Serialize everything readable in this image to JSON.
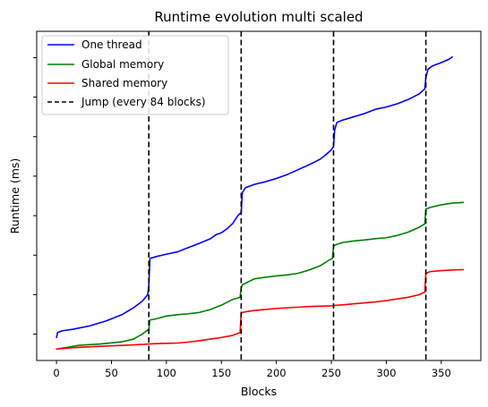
{
  "chart_data": {
    "type": "line",
    "title": "Runtime evolution multi scaled",
    "xlabel": "Blocks",
    "ylabel": "Runtime (ms)",
    "xlim": [
      -18,
      386
    ],
    "ylim": [
      0,
      100
    ],
    "x_ticks": [
      0,
      50,
      100,
      150,
      200,
      250,
      300,
      350
    ],
    "y_tick_values": [
      8,
      20,
      32,
      44,
      56,
      68,
      80,
      92
    ],
    "y_tick_labels_visible": false,
    "grid": false,
    "legend_position": "top-left",
    "series": [
      {
        "name": "One thread",
        "color": "#0000ff",
        "style": "solid",
        "points": [
          [
            0,
            7
          ],
          [
            1,
            8.5
          ],
          [
            5,
            9
          ],
          [
            15,
            9.5
          ],
          [
            30,
            10.5
          ],
          [
            45,
            12
          ],
          [
            60,
            14
          ],
          [
            70,
            16
          ],
          [
            78,
            18
          ],
          [
            83,
            20
          ],
          [
            84,
            23
          ],
          [
            85,
            31
          ],
          [
            90,
            31.5
          ],
          [
            100,
            32.3
          ],
          [
            110,
            33
          ],
          [
            120,
            34.3
          ],
          [
            130,
            35.6
          ],
          [
            140,
            37
          ],
          [
            145,
            38.2
          ],
          [
            150,
            38.8
          ],
          [
            155,
            40
          ],
          [
            160,
            41.5
          ],
          [
            165,
            44
          ],
          [
            168,
            45
          ],
          [
            169,
            51
          ],
          [
            172,
            52.5
          ],
          [
            180,
            53.5
          ],
          [
            190,
            54.3
          ],
          [
            200,
            55.3
          ],
          [
            210,
            56.5
          ],
          [
            220,
            58
          ],
          [
            230,
            59.5
          ],
          [
            240,
            61.2
          ],
          [
            245,
            62.5
          ],
          [
            250,
            64
          ],
          [
            252,
            65
          ],
          [
            253,
            70
          ],
          [
            255,
            72.3
          ],
          [
            260,
            73
          ],
          [
            270,
            74
          ],
          [
            280,
            75
          ],
          [
            290,
            76.3
          ],
          [
            300,
            77
          ],
          [
            310,
            78
          ],
          [
            320,
            79.3
          ],
          [
            330,
            81
          ],
          [
            335,
            82.5
          ],
          [
            336,
            86
          ],
          [
            338,
            88.5
          ],
          [
            342,
            89.5
          ],
          [
            350,
            90.5
          ],
          [
            357,
            91.5
          ],
          [
            360,
            92.2
          ]
        ]
      },
      {
        "name": "Global memory",
        "color": "#008000",
        "style": "solid",
        "points": [
          [
            0,
            3.5
          ],
          [
            10,
            4
          ],
          [
            20,
            4.6
          ],
          [
            40,
            5
          ],
          [
            60,
            5.7
          ],
          [
            70,
            6.5
          ],
          [
            78,
            8
          ],
          [
            84,
            9.5
          ],
          [
            85,
            12.3
          ],
          [
            90,
            12.6
          ],
          [
            100,
            13.5
          ],
          [
            110,
            13.9
          ],
          [
            120,
            14.2
          ],
          [
            130,
            14.6
          ],
          [
            140,
            15.5
          ],
          [
            150,
            16.8
          ],
          [
            160,
            18.5
          ],
          [
            167,
            19.2
          ],
          [
            168,
            22
          ],
          [
            169,
            23
          ],
          [
            175,
            24
          ],
          [
            180,
            24.8
          ],
          [
            190,
            25.3
          ],
          [
            200,
            25.7
          ],
          [
            210,
            26
          ],
          [
            220,
            26.5
          ],
          [
            230,
            27.5
          ],
          [
            240,
            28.8
          ],
          [
            248,
            30.5
          ],
          [
            251,
            31
          ],
          [
            252,
            34.8
          ],
          [
            255,
            35.3
          ],
          [
            260,
            35.8
          ],
          [
            270,
            36.3
          ],
          [
            280,
            36.6
          ],
          [
            290,
            37
          ],
          [
            300,
            37.3
          ],
          [
            310,
            38
          ],
          [
            320,
            39
          ],
          [
            330,
            40.5
          ],
          [
            335,
            41.5
          ],
          [
            336,
            46
          ],
          [
            340,
            46.5
          ],
          [
            350,
            47.3
          ],
          [
            360,
            47.8
          ],
          [
            370,
            48
          ]
        ]
      },
      {
        "name": "Shared memory",
        "color": "#ff0000",
        "style": "solid",
        "points": [
          [
            0,
            3.5
          ],
          [
            20,
            4
          ],
          [
            40,
            4.3
          ],
          [
            60,
            4.6
          ],
          [
            80,
            4.9
          ],
          [
            84,
            5
          ],
          [
            90,
            5.1
          ],
          [
            100,
            5.2
          ],
          [
            110,
            5.3
          ],
          [
            120,
            5.6
          ],
          [
            130,
            6
          ],
          [
            140,
            6.5
          ],
          [
            150,
            7
          ],
          [
            160,
            7.6
          ],
          [
            167,
            8.5
          ],
          [
            168,
            14.5
          ],
          [
            172,
            14.8
          ],
          [
            180,
            15.2
          ],
          [
            190,
            15.5
          ],
          [
            200,
            15.8
          ],
          [
            210,
            16
          ],
          [
            220,
            16.2
          ],
          [
            230,
            16.4
          ],
          [
            240,
            16.5
          ],
          [
            250,
            16.6
          ],
          [
            252,
            16.7
          ],
          [
            260,
            16.9
          ],
          [
            270,
            17.2
          ],
          [
            280,
            17.5
          ],
          [
            290,
            17.8
          ],
          [
            300,
            18.2
          ],
          [
            310,
            18.7
          ],
          [
            320,
            19.2
          ],
          [
            330,
            20
          ],
          [
            335,
            20.8
          ],
          [
            336,
            26.5
          ],
          [
            340,
            27
          ],
          [
            350,
            27.3
          ],
          [
            360,
            27.5
          ],
          [
            370,
            27.6
          ]
        ]
      },
      {
        "name": "Jump (every 84 blocks)",
        "color": "#000000",
        "style": "dashed",
        "vlines": [
          84,
          168,
          252,
          336
        ]
      }
    ]
  }
}
